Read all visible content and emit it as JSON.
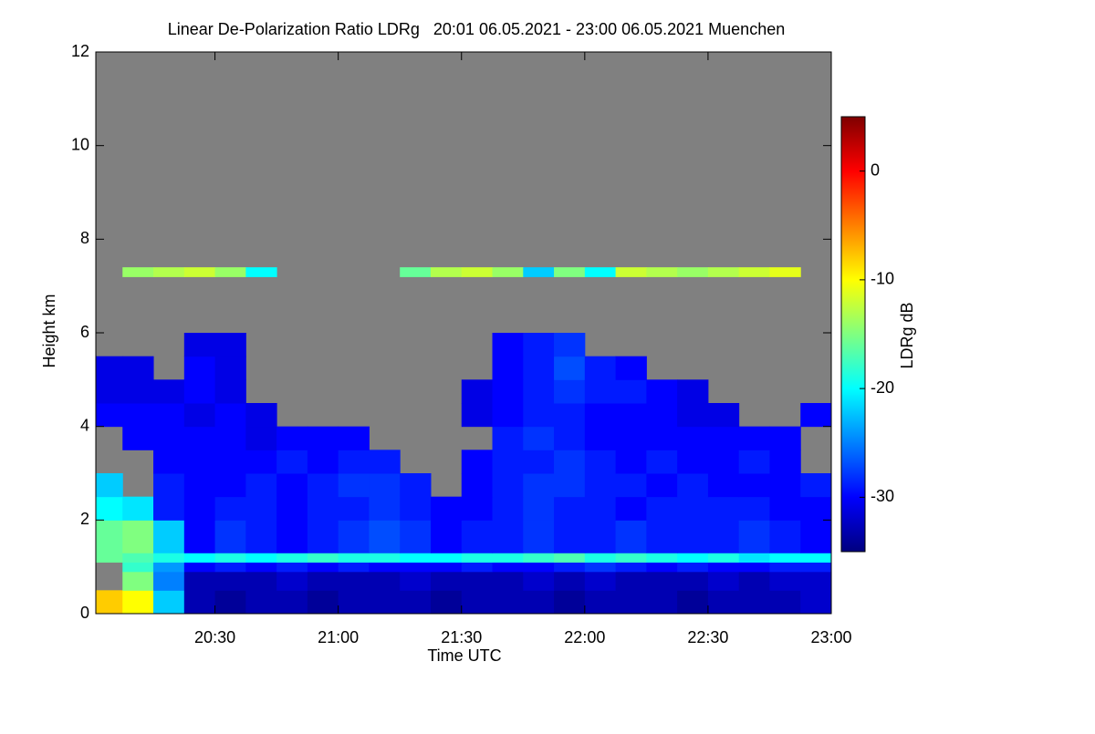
{
  "chart_data": {
    "type": "heatmap",
    "title": "Linear De-Polarization Ratio LDRg   20:01 06.05.2021 - 23:00 06.05.2021 Muenchen",
    "x_label": "Time UTC",
    "y_label": "Height km",
    "colorbar_label": "LDRg dB",
    "xlim": [
      1,
      180
    ],
    "xticks": [
      {
        "value": 30,
        "label": "20:30"
      },
      {
        "value": 60,
        "label": "21:00"
      },
      {
        "value": 90,
        "label": "21:30"
      },
      {
        "value": 120,
        "label": "22:00"
      },
      {
        "value": 150,
        "label": "22:30"
      },
      {
        "value": 180,
        "label": "23:00"
      }
    ],
    "ylim": [
      0,
      12
    ],
    "yticks": [
      0,
      2,
      4,
      6,
      8,
      10,
      12
    ],
    "clim": [
      -35,
      5
    ],
    "cticks": [
      0,
      -10,
      -20,
      -30
    ],
    "colormap": [
      "#00007f",
      "#0000ff",
      "#0080ff",
      "#00ffff",
      "#80ff80",
      "#ffff00",
      "#ff8000",
      "#ff0000",
      "#7f0000"
    ],
    "missing_color": "#808080",
    "x_bins": [
      1,
      7.5,
      15,
      22.5,
      30,
      37.5,
      45,
      52.5,
      60,
      67.5,
      75,
      82.5,
      90,
      97.5,
      105,
      112.5,
      120,
      127.5,
      135,
      142.5,
      150,
      157.5,
      165,
      172.5,
      180
    ],
    "y_bins": [
      0,
      0.5,
      0.9,
      1.1,
      1.3,
      2,
      2.5,
      3,
      3.5,
      4,
      4.5,
      5,
      5.5,
      6,
      7.2,
      7.4
    ],
    "values": [
      [
        -8,
        -10,
        -22,
        -33,
        -34,
        -33,
        -33,
        -34,
        -33,
        -33,
        -33,
        -34,
        -33,
        -33,
        -33,
        -34,
        -33,
        -33,
        -33,
        -34,
        -33,
        -33,
        -33,
        -32
      ],
      [
        null,
        -15,
        -25,
        -33,
        -33,
        -33,
        -32,
        -33,
        -33,
        -33,
        -32,
        -33,
        -33,
        -33,
        -32,
        -33,
        -32,
        -33,
        -33,
        -33,
        -32,
        -33,
        -32,
        -32
      ],
      [
        null,
        -18,
        -24,
        -30,
        -29,
        -30,
        -29,
        -30,
        -29,
        -30,
        -30,
        -30,
        -29,
        -30,
        -30,
        -29,
        -28,
        -29,
        -30,
        -29,
        -30,
        -30,
        -29,
        -29
      ],
      [
        -16,
        -17,
        -19,
        -20,
        -19,
        -20,
        -19,
        -18,
        -19,
        -19,
        -20,
        -20,
        -19,
        -19,
        -18,
        -17,
        -19,
        -18,
        -19,
        -20,
        -19,
        -21,
        -20,
        -20
      ],
      [
        -16,
        -15,
        -22,
        -30,
        -28,
        -29,
        -30,
        -29,
        -28,
        -27,
        -28,
        -30,
        -29,
        -29,
        -28,
        -29,
        -29,
        -28,
        -29,
        -29,
        -29,
        -28,
        -29,
        -30
      ],
      [
        -20,
        -21,
        -29,
        -30,
        -29,
        -29,
        -30,
        -29,
        -29,
        -28,
        -29,
        -30,
        -30,
        -29,
        -28,
        -29,
        -29,
        -30,
        -29,
        -29,
        -29,
        -29,
        -30,
        -30
      ],
      [
        -22,
        null,
        -29,
        -30,
        -30,
        -29,
        -30,
        -29,
        -28,
        -28,
        -29,
        null,
        -30,
        -29,
        -28,
        -28,
        -29,
        -29,
        -30,
        -29,
        -30,
        -30,
        -30,
        -29
      ],
      [
        null,
        null,
        -30,
        -30,
        -30,
        -30,
        -29,
        -30,
        -29,
        -29,
        null,
        null,
        -30,
        -29,
        -29,
        -28,
        -29,
        -30,
        -29,
        -30,
        -30,
        -29,
        -30,
        null
      ],
      [
        null,
        -30,
        -30,
        -30,
        -30,
        -31,
        -30,
        -30,
        -30,
        null,
        null,
        null,
        null,
        -29,
        -28,
        -29,
        -30,
        -30,
        -30,
        -30,
        -30,
        -30,
        -30,
        null
      ],
      [
        -30,
        -30,
        -30,
        -31,
        -30,
        -31,
        null,
        null,
        null,
        null,
        null,
        null,
        -31,
        -30,
        -29,
        -29,
        -30,
        -30,
        -30,
        -31,
        -31,
        null,
        null,
        -30
      ],
      [
        -31,
        -31,
        -31,
        -30,
        -31,
        null,
        null,
        null,
        null,
        null,
        null,
        null,
        -31,
        -30,
        -29,
        -28,
        -29,
        -29,
        -30,
        -31,
        null,
        null,
        null,
        null
      ],
      [
        -31,
        -31,
        null,
        -30,
        -31,
        null,
        null,
        null,
        null,
        null,
        null,
        null,
        null,
        -30,
        -29,
        -27,
        -29,
        -30,
        null,
        null,
        null,
        null,
        null,
        null
      ],
      [
        null,
        null,
        null,
        -31,
        -31,
        null,
        null,
        null,
        null,
        null,
        null,
        null,
        null,
        -30,
        -29,
        -28,
        null,
        null,
        null,
        null,
        null,
        null,
        null,
        null
      ],
      [
        null,
        null,
        null,
        null,
        null,
        null,
        null,
        null,
        null,
        null,
        null,
        null,
        null,
        null,
        null,
        null,
        null,
        null,
        null,
        null,
        null,
        null,
        null,
        null
      ],
      [
        null,
        -14,
        -13,
        -12,
        -14,
        -20,
        null,
        null,
        null,
        null,
        -16,
        -13,
        -12,
        -14,
        -22,
        -15,
        -20,
        -12,
        -13,
        -14,
        -13,
        -12,
        -11,
        null
      ]
    ]
  }
}
